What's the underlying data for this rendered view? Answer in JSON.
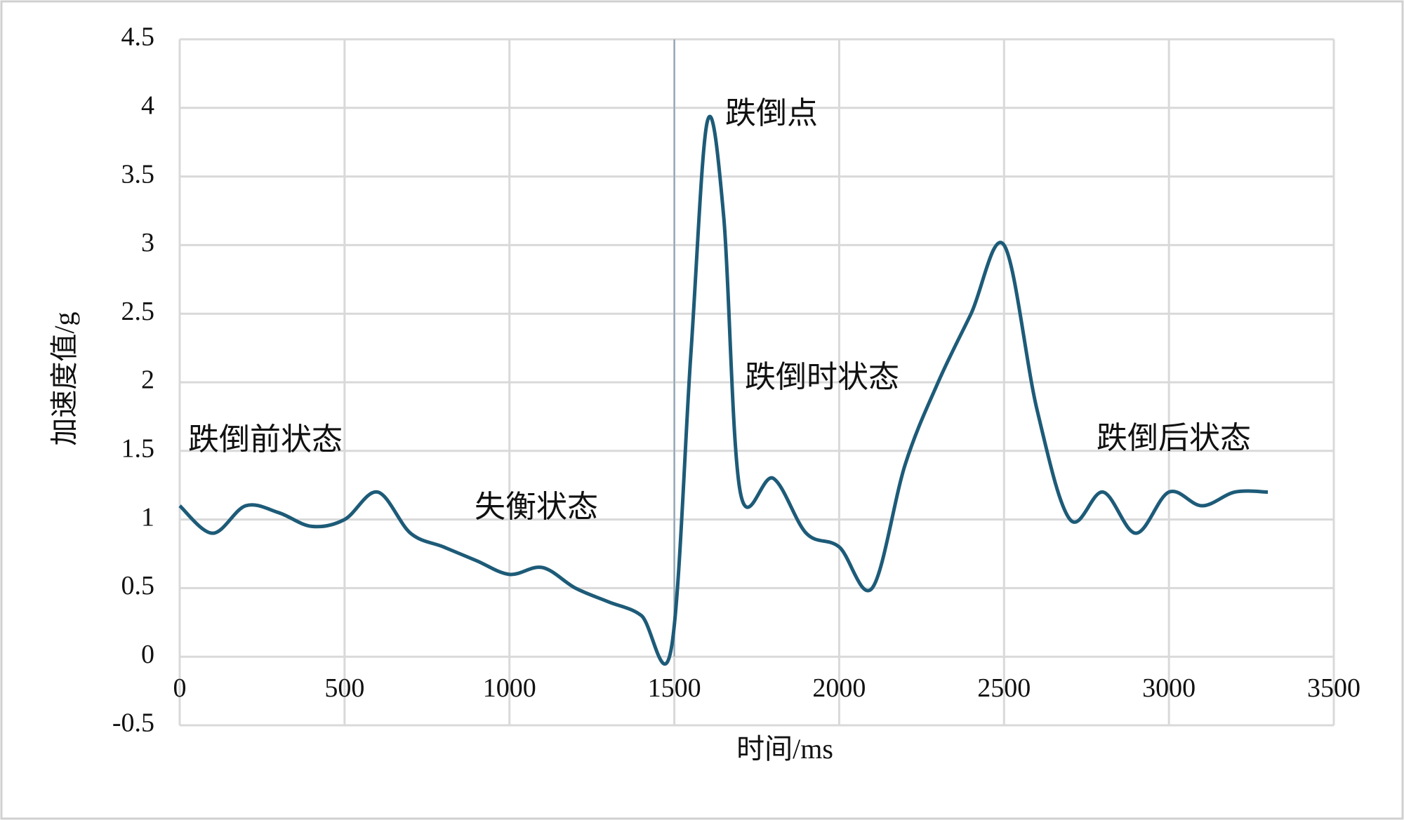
{
  "chart_data": {
    "type": "line",
    "x_label": "时间/ms",
    "y_label": "加速度值/g",
    "x": [
      0,
      100,
      200,
      300,
      400,
      500,
      600,
      700,
      800,
      900,
      1000,
      1100,
      1200,
      1300,
      1400,
      1490,
      1550,
      1600,
      1650,
      1700,
      1800,
      1900,
      2000,
      2100,
      2200,
      2300,
      2400,
      2500,
      2600,
      2700,
      2800,
      2900,
      3000,
      3100,
      3200,
      3300
    ],
    "series": [
      {
        "color": "#1d5b78",
        "values": [
          1.1,
          0.9,
          1.1,
          1.05,
          0.95,
          1.0,
          1.2,
          0.9,
          0.8,
          0.7,
          0.6,
          0.65,
          0.5,
          0.4,
          0.3,
          0.05,
          2.2,
          3.9,
          3.2,
          1.2,
          1.3,
          0.9,
          0.8,
          0.5,
          1.4,
          2.0,
          2.5,
          3.0,
          1.8,
          1.0,
          1.2,
          0.9,
          1.2,
          1.1,
          1.2,
          1.2
        ]
      }
    ],
    "xlim": [
      0,
      3500
    ],
    "xticks": [
      0,
      500,
      1000,
      1500,
      2000,
      2500,
      3000,
      3500
    ],
    "ylim": [
      -0.5,
      4.5
    ],
    "yticks": [
      -0.5,
      0,
      0.5,
      1,
      1.5,
      2,
      2.5,
      3,
      3.5,
      4,
      4.5
    ],
    "grid": true,
    "vline": 1500,
    "annotations": [
      "跌倒前状态",
      "失衡状态",
      "跌倒点",
      "跌倒时状态",
      "跌倒后状态"
    ]
  }
}
